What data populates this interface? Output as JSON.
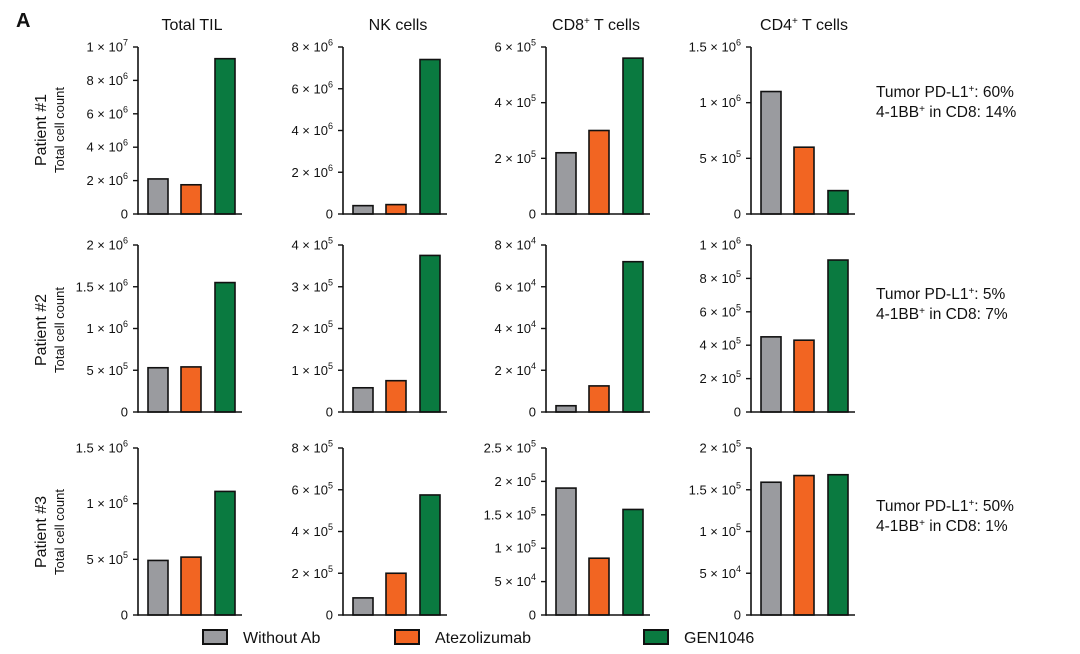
{
  "figure": {
    "panel_label": "A",
    "ylabel": "Total cell count",
    "exponent_sign": "×",
    "colors": {
      "Without Ab": "#9a9b9f",
      "Atezolizumab": "#f26522",
      "GEN1046": "#0a7a40"
    },
    "legend": [
      "Without Ab",
      "Atezolizumab",
      "GEN1046"
    ],
    "columns": [
      {
        "base": "Total TIL",
        "sup": ""
      },
      {
        "base": "NK cells",
        "sup": ""
      },
      {
        "base": "CD8",
        "sup": "+",
        "rest": " T cells"
      },
      {
        "base": "CD4",
        "sup": "+",
        "rest": " T cells"
      }
    ],
    "rows": [
      {
        "label": "Patient #1",
        "annotation": {
          "l1a": "Tumor PD-L1",
          "l1b": "+",
          "l1c": ": 60%",
          "l2a": "4-1BB",
          "l2b": "+",
          "l2c": " in CD8: 14%"
        }
      },
      {
        "label": "Patient #2",
        "annotation": {
          "l1a": "Tumor PD-L1",
          "l1b": "+",
          "l1c": ": 5%",
          "l2a": "4-1BB",
          "l2b": "+",
          "l2c": " in CD8: 7%"
        }
      },
      {
        "label": "Patient #3",
        "annotation": {
          "l1a": "Tumor PD-L1",
          "l1b": "+",
          "l1c": ": 50%",
          "l2a": "4-1BB",
          "l2b": "+",
          "l2c": " in CD8: 1%"
        }
      }
    ]
  },
  "chart_data": [
    {
      "type": "bar",
      "row": "Patient #1",
      "title": "Total TIL",
      "ylabel": "Total cell count",
      "categories": [
        "Without Ab",
        "Atezolizumab",
        "GEN1046"
      ],
      "values": [
        2100000,
        1750000,
        9300000
      ],
      "ylim": [
        0,
        10000000
      ],
      "ticks": [
        {
          "m": "0",
          "e": ""
        },
        {
          "m": "2",
          "e": "6"
        },
        {
          "m": "4",
          "e": "6"
        },
        {
          "m": "6",
          "e": "6"
        },
        {
          "m": "8",
          "e": "6"
        },
        {
          "m": "1",
          "e": "7"
        }
      ]
    },
    {
      "type": "bar",
      "row": "Patient #1",
      "title": "NK cells",
      "ylabel": "Total cell count",
      "categories": [
        "Without Ab",
        "Atezolizumab",
        "GEN1046"
      ],
      "values": [
        400000,
        450000,
        7400000
      ],
      "ylim": [
        0,
        8000000
      ],
      "ticks": [
        {
          "m": "0",
          "e": ""
        },
        {
          "m": "2",
          "e": "6"
        },
        {
          "m": "4",
          "e": "6"
        },
        {
          "m": "6",
          "e": "6"
        },
        {
          "m": "8",
          "e": "6"
        }
      ]
    },
    {
      "type": "bar",
      "row": "Patient #1",
      "title": "CD8+ T cells",
      "ylabel": "Total cell count",
      "categories": [
        "Without Ab",
        "Atezolizumab",
        "GEN1046"
      ],
      "values": [
        220000,
        300000,
        560000
      ],
      "ylim": [
        0,
        600000
      ],
      "ticks": [
        {
          "m": "0",
          "e": ""
        },
        {
          "m": "2",
          "e": "5"
        },
        {
          "m": "4",
          "e": "5"
        },
        {
          "m": "6",
          "e": "5"
        }
      ]
    },
    {
      "type": "bar",
      "row": "Patient #1",
      "title": "CD4+ T cells",
      "ylabel": "Total cell count",
      "categories": [
        "Without Ab",
        "Atezolizumab",
        "GEN1046"
      ],
      "values": [
        1100000,
        600000,
        210000
      ],
      "ylim": [
        0,
        1500000
      ],
      "ticks": [
        {
          "m": "0",
          "e": ""
        },
        {
          "m": "5",
          "e": "5"
        },
        {
          "m": "1",
          "e": "6"
        },
        {
          "m": "1.5",
          "e": "6"
        }
      ]
    },
    {
      "type": "bar",
      "row": "Patient #2",
      "title": "Total TIL",
      "ylabel": "Total cell count",
      "categories": [
        "Without Ab",
        "Atezolizumab",
        "GEN1046"
      ],
      "values": [
        530000,
        540000,
        1550000
      ],
      "ylim": [
        0,
        2000000
      ],
      "ticks": [
        {
          "m": "0",
          "e": ""
        },
        {
          "m": "5",
          "e": "5"
        },
        {
          "m": "1",
          "e": "6"
        },
        {
          "m": "1.5",
          "e": "6"
        },
        {
          "m": "2",
          "e": "6"
        }
      ]
    },
    {
      "type": "bar",
      "row": "Patient #2",
      "title": "NK cells",
      "ylabel": "Total cell count",
      "categories": [
        "Without Ab",
        "Atezolizumab",
        "GEN1046"
      ],
      "values": [
        58000,
        75000,
        375000
      ],
      "ylim": [
        0,
        400000
      ],
      "ticks": [
        {
          "m": "0",
          "e": ""
        },
        {
          "m": "1",
          "e": "5"
        },
        {
          "m": "2",
          "e": "5"
        },
        {
          "m": "3",
          "e": "5"
        },
        {
          "m": "4",
          "e": "5"
        }
      ]
    },
    {
      "type": "bar",
      "row": "Patient #2",
      "title": "CD8+ T cells",
      "ylabel": "Total cell count",
      "categories": [
        "Without Ab",
        "Atezolizumab",
        "GEN1046"
      ],
      "values": [
        3000,
        12500,
        72000
      ],
      "ylim": [
        0,
        80000
      ],
      "ticks": [
        {
          "m": "0",
          "e": ""
        },
        {
          "m": "2",
          "e": "4"
        },
        {
          "m": "4",
          "e": "4"
        },
        {
          "m": "6",
          "e": "4"
        },
        {
          "m": "8",
          "e": "4"
        }
      ]
    },
    {
      "type": "bar",
      "row": "Patient #2",
      "title": "CD4+ T cells",
      "ylabel": "Total cell count",
      "categories": [
        "Without Ab",
        "Atezolizumab",
        "GEN1046"
      ],
      "values": [
        450000,
        430000,
        910000
      ],
      "ylim": [
        0,
        1000000
      ],
      "ticks": [
        {
          "m": "0",
          "e": ""
        },
        {
          "m": "2",
          "e": "5"
        },
        {
          "m": "4",
          "e": "5"
        },
        {
          "m": "6",
          "e": "5"
        },
        {
          "m": "8",
          "e": "5"
        },
        {
          "m": "1",
          "e": "6"
        }
      ]
    },
    {
      "type": "bar",
      "row": "Patient #3",
      "title": "Total TIL",
      "ylabel": "Total cell count",
      "categories": [
        "Without Ab",
        "Atezolizumab",
        "GEN1046"
      ],
      "values": [
        490000,
        520000,
        1110000
      ],
      "ylim": [
        0,
        1500000
      ],
      "ticks": [
        {
          "m": "0",
          "e": ""
        },
        {
          "m": "5",
          "e": "5"
        },
        {
          "m": "1",
          "e": "6"
        },
        {
          "m": "1.5",
          "e": "6"
        }
      ]
    },
    {
      "type": "bar",
      "row": "Patient #3",
      "title": "NK cells",
      "ylabel": "Total cell count",
      "categories": [
        "Without Ab",
        "Atezolizumab",
        "GEN1046"
      ],
      "values": [
        82000,
        200000,
        575000
      ],
      "ylim": [
        0,
        800000
      ],
      "ticks": [
        {
          "m": "0",
          "e": ""
        },
        {
          "m": "2",
          "e": "5"
        },
        {
          "m": "4",
          "e": "5"
        },
        {
          "m": "6",
          "e": "5"
        },
        {
          "m": "8",
          "e": "5"
        }
      ]
    },
    {
      "type": "bar",
      "row": "Patient #3",
      "title": "CD8+ T cells",
      "ylabel": "Total cell count",
      "categories": [
        "Without Ab",
        "Atezolizumab",
        "GEN1046"
      ],
      "values": [
        190000,
        85000,
        158000
      ],
      "ylim": [
        0,
        250000
      ],
      "ticks": [
        {
          "m": "0",
          "e": ""
        },
        {
          "m": "5",
          "e": "4"
        },
        {
          "m": "1",
          "e": "5"
        },
        {
          "m": "1.5",
          "e": "5"
        },
        {
          "m": "2",
          "e": "5"
        },
        {
          "m": "2.5",
          "e": "5"
        }
      ]
    },
    {
      "type": "bar",
      "row": "Patient #3",
      "title": "CD4+ T cells",
      "ylabel": "Total cell count",
      "categories": [
        "Without Ab",
        "Atezolizumab",
        "GEN1046"
      ],
      "values": [
        159000,
        167000,
        168000
      ],
      "ylim": [
        0,
        200000
      ],
      "ticks": [
        {
          "m": "0",
          "e": ""
        },
        {
          "m": "5",
          "e": "4"
        },
        {
          "m": "1",
          "e": "5"
        },
        {
          "m": "1.5",
          "e": "5"
        },
        {
          "m": "2",
          "e": "5"
        }
      ]
    }
  ]
}
